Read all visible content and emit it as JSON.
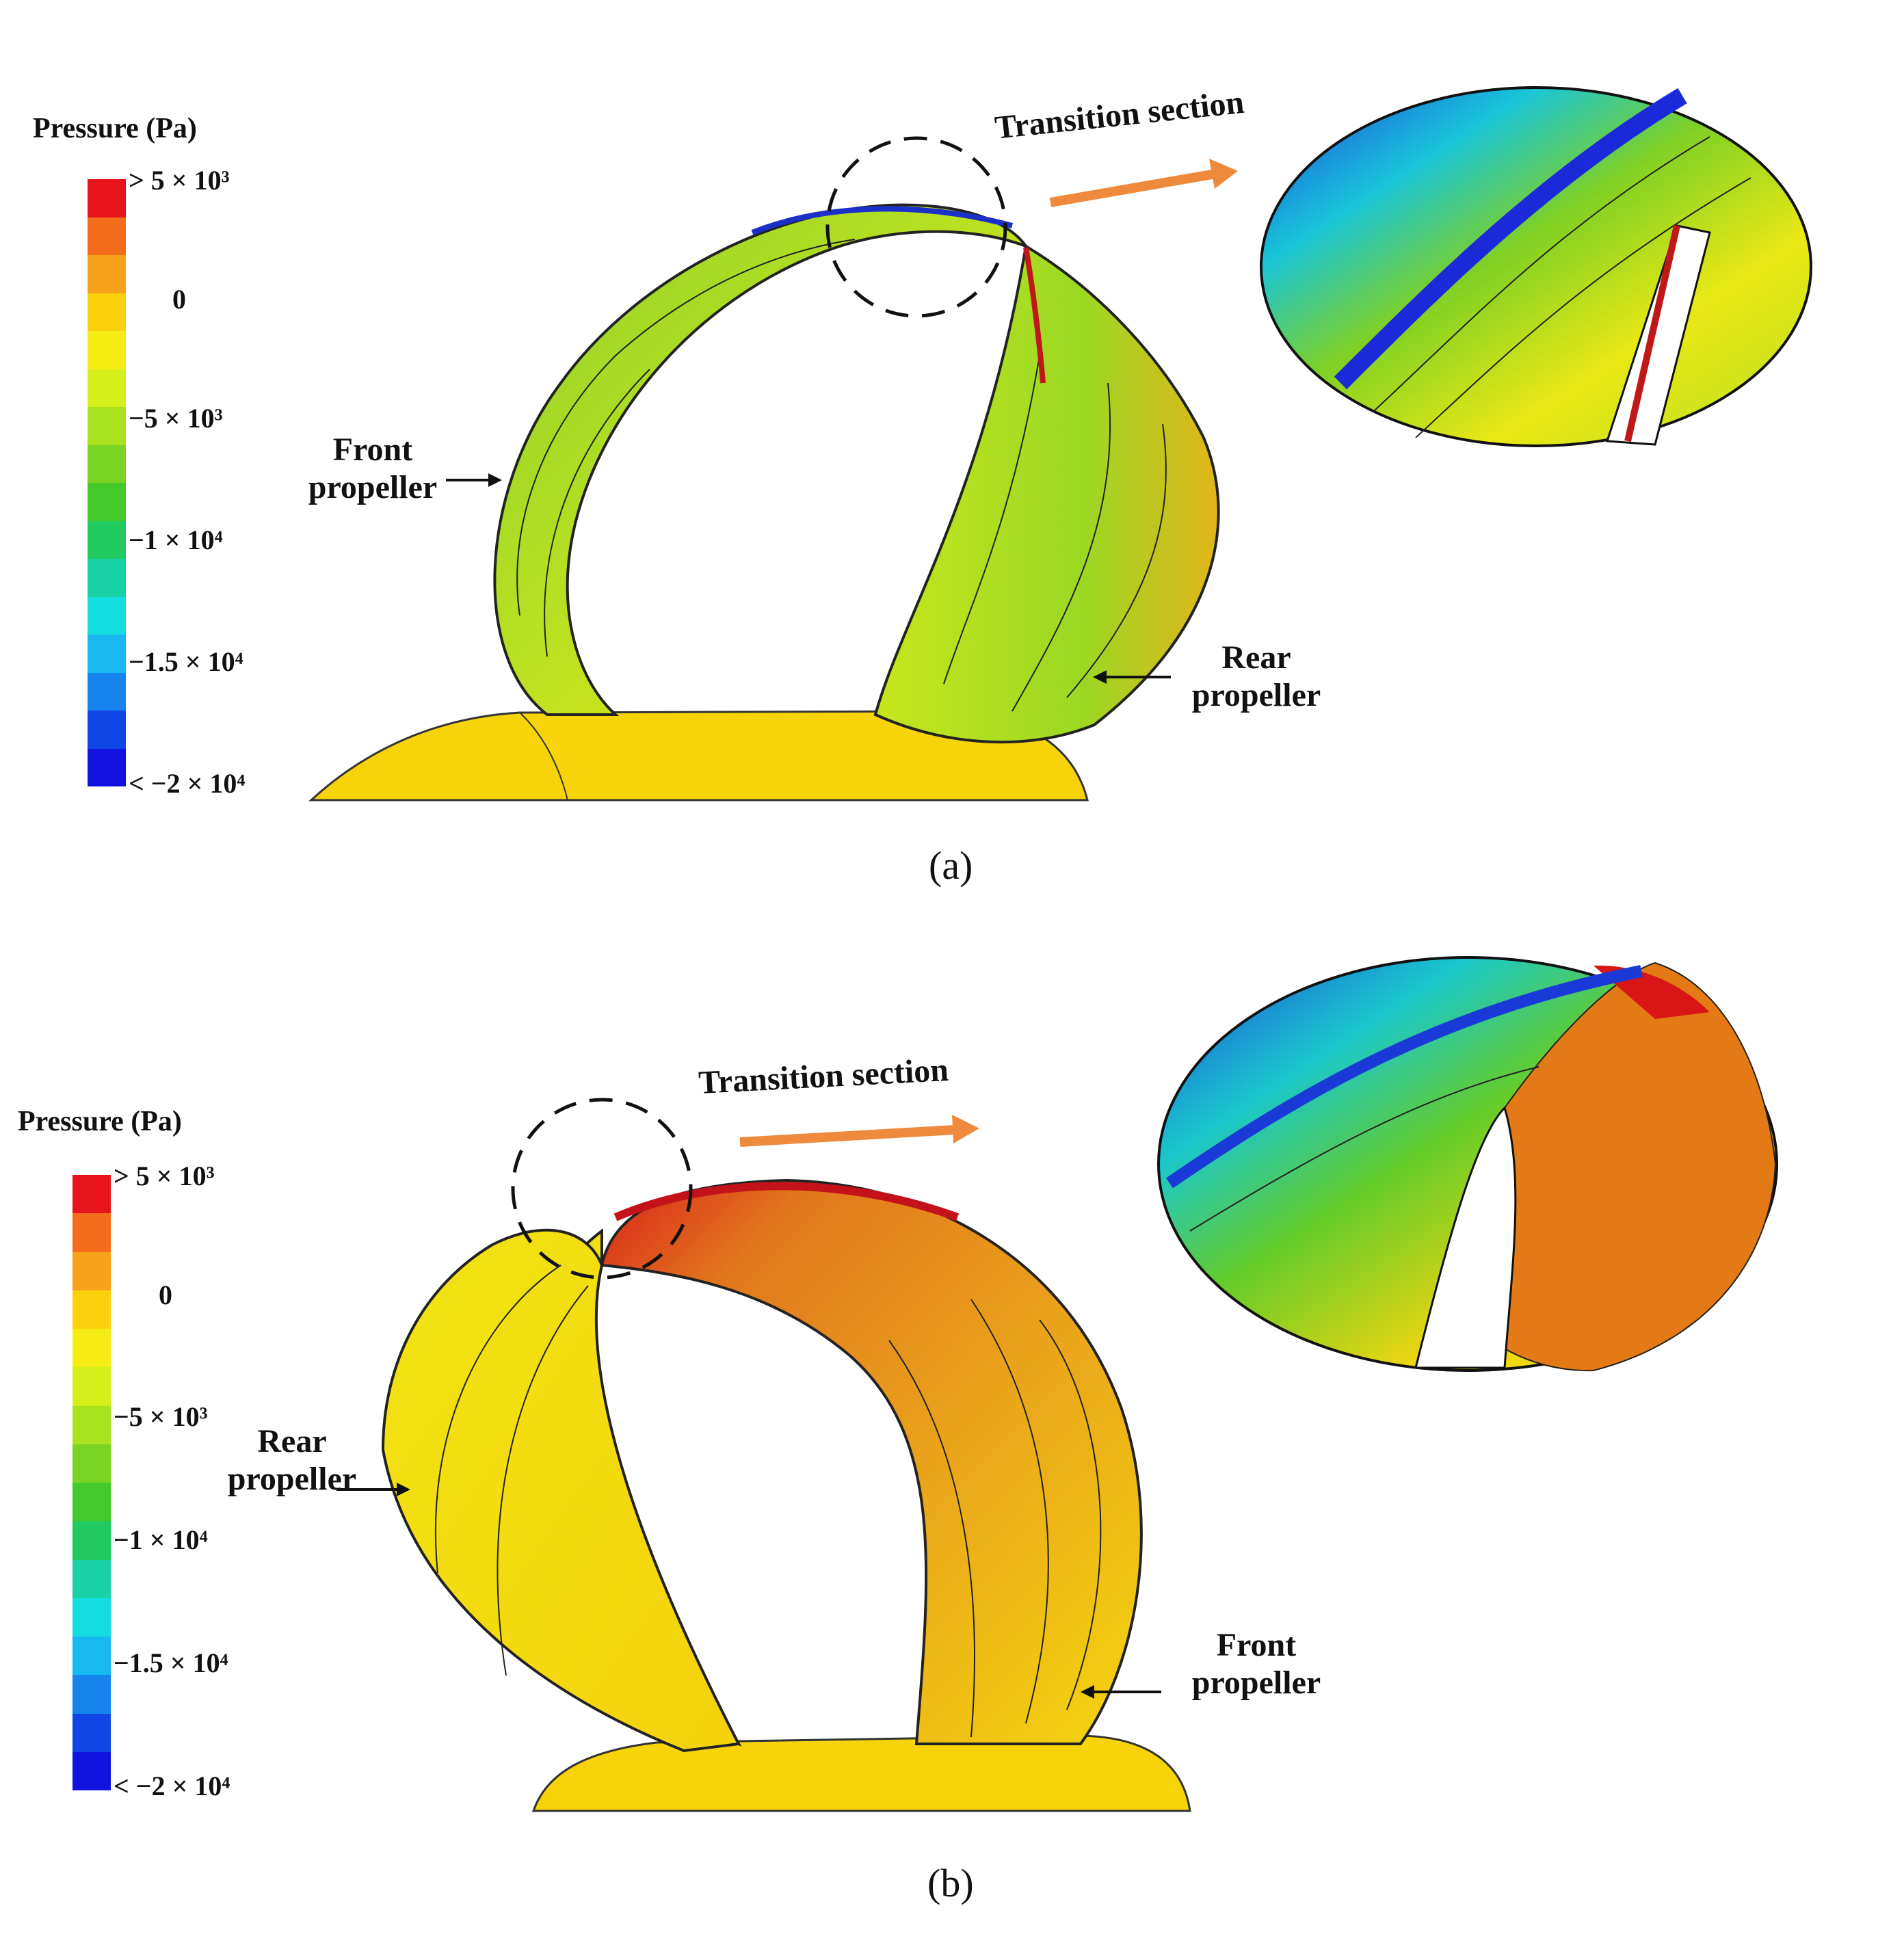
{
  "colorbar_colors": [
    "#e8141c",
    "#f36d1c",
    "#f7a21a",
    "#fbd10e",
    "#f4ec12",
    "#d4ef1a",
    "#a9e21f",
    "#7ad423",
    "#44c92a",
    "#21c95f",
    "#18d2a6",
    "#14dde0",
    "#18b8f0",
    "#1783ed",
    "#1046e6",
    "#1111e0"
  ],
  "panel_a": {
    "colorbar": {
      "title": "Pressure (Pa)",
      "ticks": [
        {
          "text": "> 5 × 10³"
        },
        {
          "text": "0"
        },
        {
          "text": "−5 × 10³"
        },
        {
          "text": "−1 × 10⁴"
        },
        {
          "text": "−1.5 × 10⁴"
        },
        {
          "text": "< −2 × 10⁴"
        }
      ]
    },
    "labels": {
      "front": "Front\npropeller",
      "rear": "Rear\npropeller",
      "transition": "Transition section"
    },
    "caption": "(a)"
  },
  "panel_b": {
    "colorbar": {
      "title": "Pressure (Pa)",
      "ticks": [
        {
          "text": "> 5 × 10³"
        },
        {
          "text": "0"
        },
        {
          "text": "−5 × 10³"
        },
        {
          "text": "−1 × 10⁴"
        },
        {
          "text": "−1.5 × 10⁴"
        },
        {
          "text": "< −2 × 10⁴"
        }
      ]
    },
    "labels": {
      "rear": "Rear\npropeller",
      "front": "Front\npropeller",
      "transition": "Transition section"
    },
    "caption": "(b)"
  }
}
